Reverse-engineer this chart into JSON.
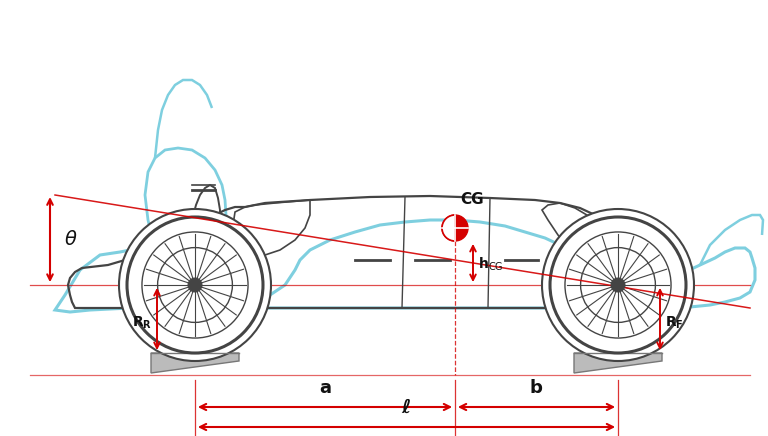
{
  "bg_color": "#ffffff",
  "red": "#d40000",
  "car_color": "#444444",
  "cyan_color": "#7ecfdf",
  "figsize": [
    7.68,
    4.36
  ],
  "dpi": 100,
  "RWx": 0.255,
  "FWx": 0.81,
  "WY": 0.455,
  "CGx": 0.555,
  "CGy": 0.53,
  "WR": 0.088,
  "labels": {
    "theta": "θ",
    "CG": "CG",
    "hcg": "h",
    "RR": "R",
    "RF": "R",
    "a": "a",
    "b": "b",
    "ell": "ℓ"
  }
}
